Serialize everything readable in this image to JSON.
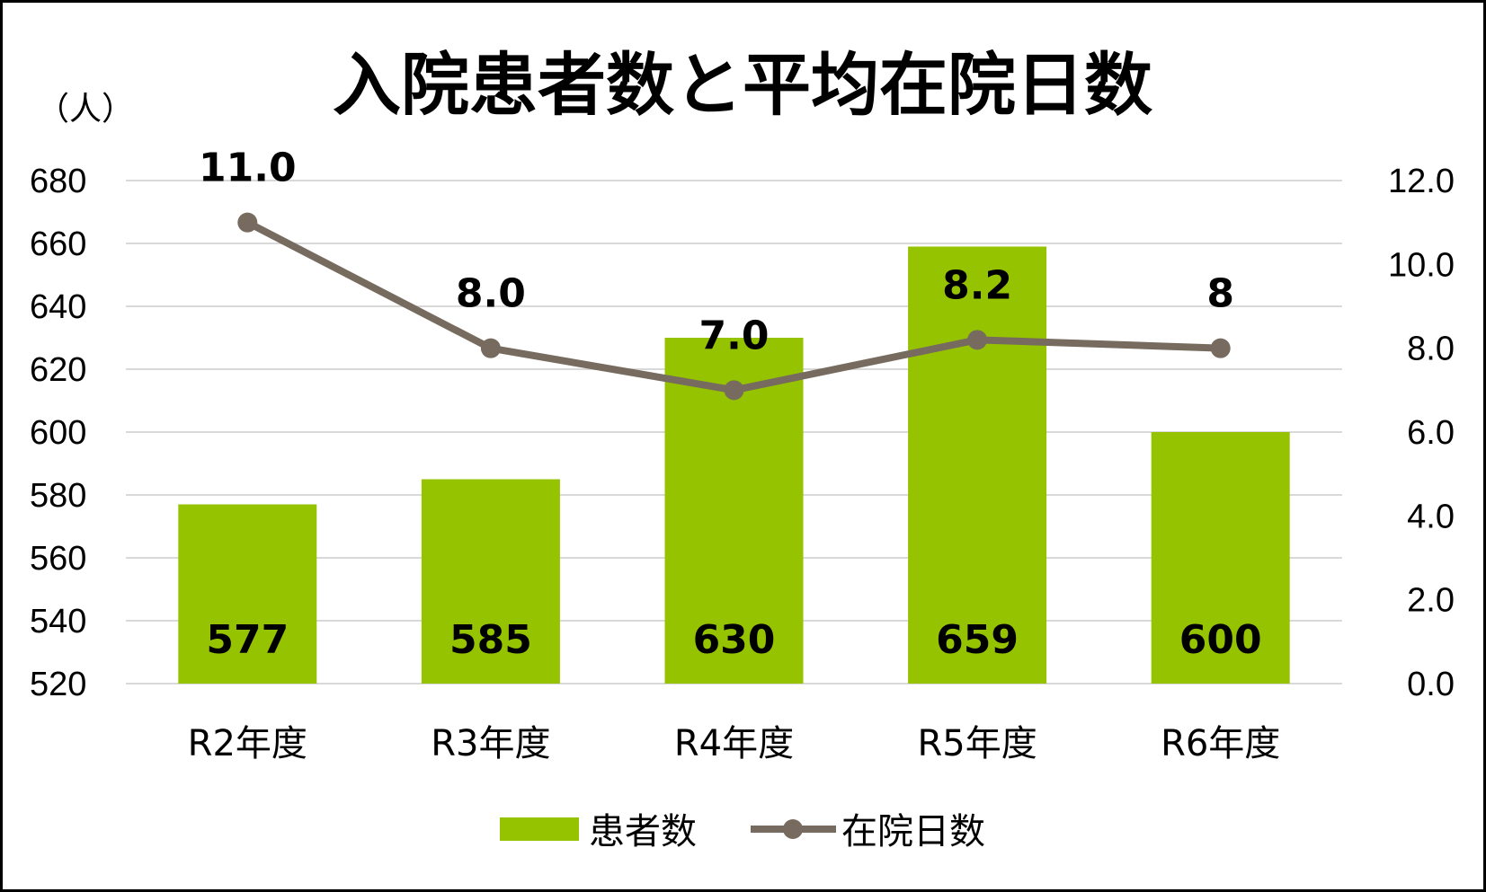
{
  "chart_data": {
    "type": "bar+line",
    "title": "入院患者数と平均在院日数",
    "y_unit_label": "（人）",
    "categories": [
      "R2年度",
      "R3年度",
      "R4年度",
      "R5年度",
      "R6年度"
    ],
    "series": [
      {
        "name": "患者数",
        "type": "bar",
        "axis": "left",
        "color": "#96c300",
        "values": [
          577,
          585,
          630,
          659,
          600
        ],
        "labels": [
          "577",
          "585",
          "630",
          "659",
          "600"
        ]
      },
      {
        "name": "在院日数",
        "type": "line",
        "axis": "right",
        "color": "#766b5e",
        "values": [
          11.0,
          8.0,
          7.0,
          8.2,
          8.0
        ],
        "labels": [
          "11.0",
          "8.0",
          "7.0",
          "8.2",
          "8"
        ]
      }
    ],
    "y_left": {
      "min": 520,
      "max": 680,
      "step": 20,
      "ticks": [
        "520",
        "540",
        "560",
        "580",
        "600",
        "620",
        "640",
        "660",
        "680"
      ]
    },
    "y_right": {
      "min": 0,
      "max": 12,
      "step": 2,
      "ticks": [
        "0.0",
        "2.0",
        "4.0",
        "6.0",
        "8.0",
        "10.0",
        "12.0"
      ]
    },
    "grid": true,
    "gridline_color": "#d9d9d9",
    "legend_position": "bottom"
  }
}
